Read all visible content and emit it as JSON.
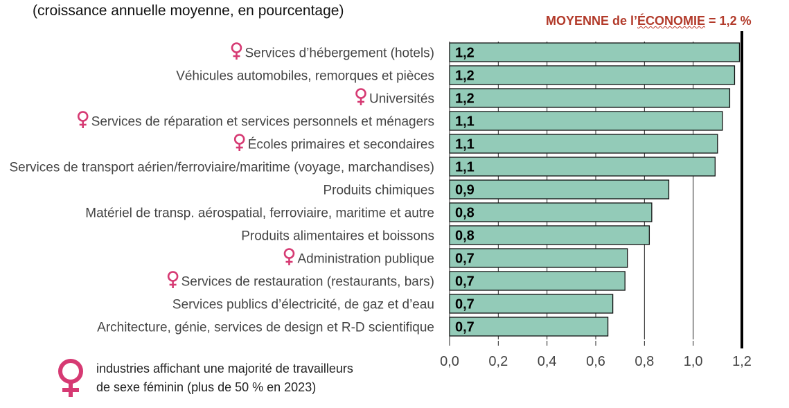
{
  "subtitle": "(croissance annuelle moyenne, en pourcentage)",
  "average_line": {
    "label_part1": "MOYENNE de l’",
    "label_part2": "ÉCONOMIE",
    "label_part3": " = 1,2 %",
    "value": 1.2,
    "color": "#b23a2a"
  },
  "legend": {
    "icon": "female-symbol-icon",
    "line1": "industries affichant une majorité de travailleurs",
    "line2": "de sexe féminin (plus de 50 % en 2023)"
  },
  "colors": {
    "bar_fill": "#93cbb8",
    "bar_stroke": "#111111",
    "female_icon": "#d63a73"
  },
  "chart_data": {
    "type": "bar",
    "orientation": "horizontal",
    "categories": [
      "Services d’hébergement (hotels)",
      "Véhicules automobiles, remorques et pièces",
      "Universités",
      "Services de réparation et services personnels et ménagers",
      "Écoles primaires et secondaires",
      "Services de transport aérien/ferroviaire/maritime (voyage, marchandises)",
      "Produits chimiques",
      "Matériel de transp. aérospatial, ferroviaire, maritime et autre",
      "Produits alimentaires et boissons",
      "Administration publique",
      "Services de restauration (restaurants, bars)",
      "Services publics d’électricité, de gaz et d’eau",
      "Architecture, génie, services de design et R-D scientifique"
    ],
    "values": [
      1.19,
      1.17,
      1.15,
      1.12,
      1.1,
      1.09,
      0.9,
      0.83,
      0.82,
      0.73,
      0.72,
      0.67,
      0.65
    ],
    "value_labels": [
      "1,2",
      "1,2",
      "1,2",
      "1,1",
      "1,1",
      "1,1",
      "0,9",
      "0,8",
      "0,8",
      "0,7",
      "0,7",
      "0,7",
      "0,7"
    ],
    "female_majority": [
      true,
      false,
      true,
      true,
      true,
      false,
      false,
      false,
      false,
      true,
      true,
      false,
      false
    ],
    "xlim": [
      0,
      1.2
    ],
    "x_ticks": [
      0,
      0.2,
      0.4,
      0.6,
      0.8,
      1.0,
      1.2
    ],
    "x_tick_labels": [
      "0,0",
      "0,2",
      "0,4",
      "0,6",
      "0,8",
      "1,0",
      "1,2"
    ],
    "grid": "vertical",
    "xlabel": "",
    "ylabel": ""
  }
}
